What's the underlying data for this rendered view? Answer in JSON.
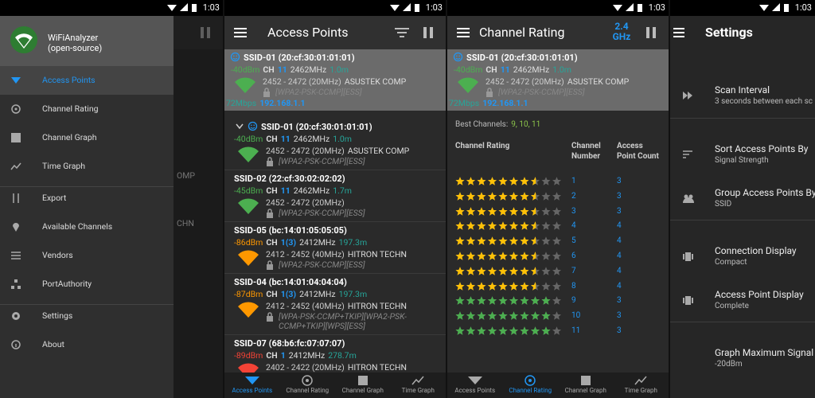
{
  "panels": [
    {
      "status_time": "1:03",
      "background_text": [
        "OMP",
        "CHN"
      ],
      "drawer": {
        "app_name": "WiFiAnalyzer",
        "app_subtitle": "(open-source)",
        "active": [
          0,
          0
        ],
        "groups": [
          [
            "Access Points",
            "Channel Rating",
            "Channel Graph",
            "Time Graph"
          ],
          [
            "Export",
            "Available Channels",
            "Vendors",
            "PortAuthority"
          ],
          [
            "Settings",
            "About"
          ]
        ]
      }
    },
    {
      "status_time": "1:03",
      "title": "Access Points",
      "selected_ap": {
        "ssid": "SSID-01 (20:cf:30:01:01:01)",
        "level": "-40dBm",
        "level_color": "#4caf50",
        "ch_label": "CH",
        "channel": "11",
        "frequency": "2462MHz",
        "distance": "1.0m",
        "range": "2452 - 2472 (20MHz)",
        "vendor": "ASUSTEK COMP",
        "security": "[WPA2-PSK-CCMP][ESS]",
        "speed": "72Mbps",
        "ip": "192.168.1.1"
      },
      "access_points": [
        {
          "ssid": "SSID-01 (20:cf:30:01:01:01)",
          "level": "-40dBm",
          "level_color": "#4caf50",
          "ch_label": "CH",
          "channel": "11",
          "frequency": "2462MHz",
          "distance": "1.0m",
          "range": "2452 - 2472 (20MHz)",
          "vendor": "ASUSTEK COMP",
          "security": "[WPA2-PSK-CCMP][ESS]"
        },
        {
          "ssid": "SSID-02 (22:cf:30:02:02:02)",
          "level": "-45dBm",
          "level_color": "#4caf50",
          "ch_label": "CH",
          "channel": "11",
          "frequency": "2462MHz",
          "distance": "1.7m",
          "range": "2452 - 2472 (20MHz)",
          "security": "[WPA2-PSK-CCMP][ESS]"
        },
        {
          "ssid": "SSID-05 (bc:14:01:05:05:05)",
          "level": "-86dBm",
          "level_color": "#ff9800",
          "ch_label": "CH",
          "channel": "1(3)",
          "frequency": "2412MHz",
          "distance": "197.3m",
          "range": "2412 - 2452 (40MHz)",
          "vendor": "HITRON TECHN",
          "security": "[WPA2-PSK-CCMP][ESS]"
        },
        {
          "ssid": "SSID-04 (bc:14:01:04:04:04)",
          "level": "-87dBm",
          "level_color": "#ff9800",
          "ch_label": "CH",
          "channel": "1(3)",
          "frequency": "2412MHz",
          "distance": "197.3m",
          "range": "2412 - 2452 (40MHz)",
          "vendor": "HITRON TECHN",
          "security": "[WPA-PSK-CCMP+TKIP][WPA2-PSK-CCMP+TKIP][WPS][ESS]"
        },
        {
          "ssid": "SSID-07 (68:b6:fc:07:07:07)",
          "level": "-89dBm",
          "level_color": "#f44336",
          "ch_label": "CH",
          "channel": "1",
          "frequency": "2412MHz",
          "distance": "278.7m",
          "range": "2402 - 2422 (20MHz)",
          "vendor": "HITRON TECHN"
        }
      ],
      "bottom_nav": {
        "items": [
          "Access Points",
          "Channel Rating",
          "Channel Graph",
          "Time Graph"
        ],
        "active": 0
      }
    },
    {
      "status_time": "1:03",
      "title": "Channel Rating",
      "band": "2.4 GHz",
      "selected_ap": {
        "ssid": "SSID-01 (20:cf:30:01:01:01)",
        "level": "-40dBm",
        "level_color": "#4caf50",
        "ch_label": "CH",
        "channel": "11",
        "frequency": "2462MHz",
        "distance": "1.0m",
        "range": "2452 - 2472 (20MHz)",
        "vendor": "ASUSTEK COMP",
        "security": "[WPA2-PSK-CCMP][ESS]",
        "speed": "72Mbps",
        "ip": "192.168.1.1"
      },
      "best_channels_label": "Best Channels:",
      "best_channels": "9, 10, 11",
      "table": {
        "headers": [
          "Channel Rating",
          "Channel Number",
          "Access Point Count"
        ],
        "max_rating": 10,
        "rows": [
          {
            "rating": 7.5,
            "color": "#ffc107",
            "channel": 1,
            "count": 3
          },
          {
            "rating": 7.5,
            "color": "#ffc107",
            "channel": 2,
            "count": 3
          },
          {
            "rating": 7.5,
            "color": "#ffc107",
            "channel": 3,
            "count": 3
          },
          {
            "rating": 7.5,
            "color": "#ffc107",
            "channel": 4,
            "count": 4
          },
          {
            "rating": 7.5,
            "color": "#ffc107",
            "channel": 5,
            "count": 4
          },
          {
            "rating": 7.5,
            "color": "#ffc107",
            "channel": 6,
            "count": 4
          },
          {
            "rating": 7.5,
            "color": "#ffc107",
            "channel": 7,
            "count": 4
          },
          {
            "rating": 7.5,
            "color": "#ffc107",
            "channel": 8,
            "count": 4
          },
          {
            "rating": 9,
            "color": "#4caf50",
            "channel": 9,
            "count": 3
          },
          {
            "rating": 9,
            "color": "#4caf50",
            "channel": 10,
            "count": 3
          },
          {
            "rating": 9,
            "color": "#4caf50",
            "channel": 11,
            "count": 3
          }
        ]
      },
      "bottom_nav": {
        "items": [
          "Access Points",
          "Channel Rating",
          "Channel Graph",
          "Time Graph"
        ],
        "active": 1
      }
    },
    {
      "status_time": "1:03",
      "title": "Settings",
      "items": [
        {
          "title": "Scan Interval",
          "subtitle": "3 seconds between each sc"
        },
        {
          "title": "Sort Access Points By",
          "subtitle": "Signal Strength"
        },
        {
          "title": "Group Access Points By",
          "subtitle": "SSID"
        },
        {
          "title": "Connection Display",
          "subtitle": "Compact"
        },
        {
          "title": "Access Point Display",
          "subtitle": "Complete"
        },
        {
          "title": "Graph Maximum Signal",
          "subtitle": "-20dBm"
        }
      ]
    }
  ]
}
